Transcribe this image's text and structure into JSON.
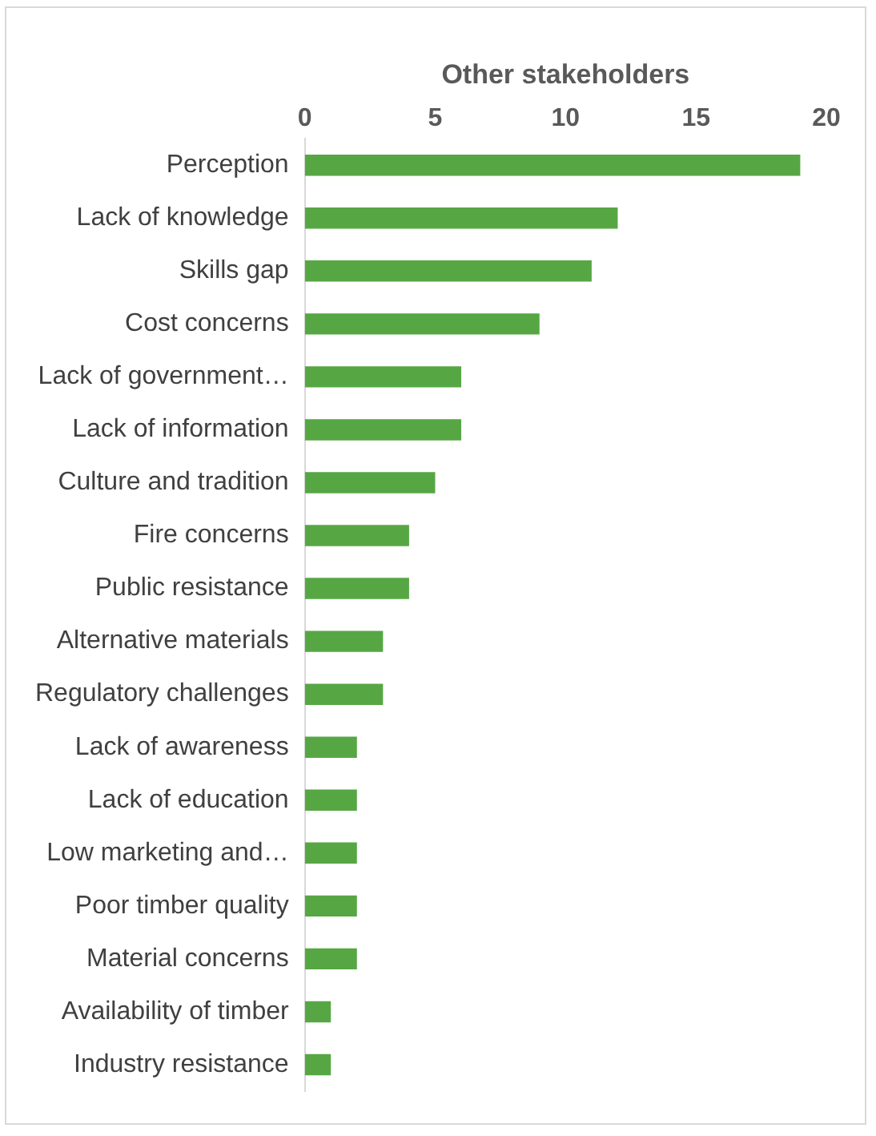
{
  "chart_data": {
    "type": "bar",
    "orientation": "horizontal",
    "xlabel": "Other stakeholders",
    "categories": [
      "Perception",
      "Lack of knowledge",
      "Skills gap",
      "Cost concerns",
      "Lack of government…",
      "Lack of information",
      "Culture and tradition",
      "Fire concerns",
      "Public resistance",
      "Alternative materials",
      "Regulatory challenges",
      "Lack of awareness",
      "Lack of education",
      "Low marketing and…",
      "Poor timber quality",
      "Material concerns",
      "Availability of timber",
      "Industry resistance"
    ],
    "values": [
      19,
      12,
      11,
      9,
      6,
      6,
      5,
      4,
      4,
      3,
      3,
      2,
      2,
      2,
      2,
      2,
      1,
      1
    ],
    "color": "#56a744",
    "xlim": [
      0,
      20
    ],
    "xticks": [
      0,
      5,
      10,
      15,
      20
    ],
    "grid": false,
    "legend": false
  }
}
